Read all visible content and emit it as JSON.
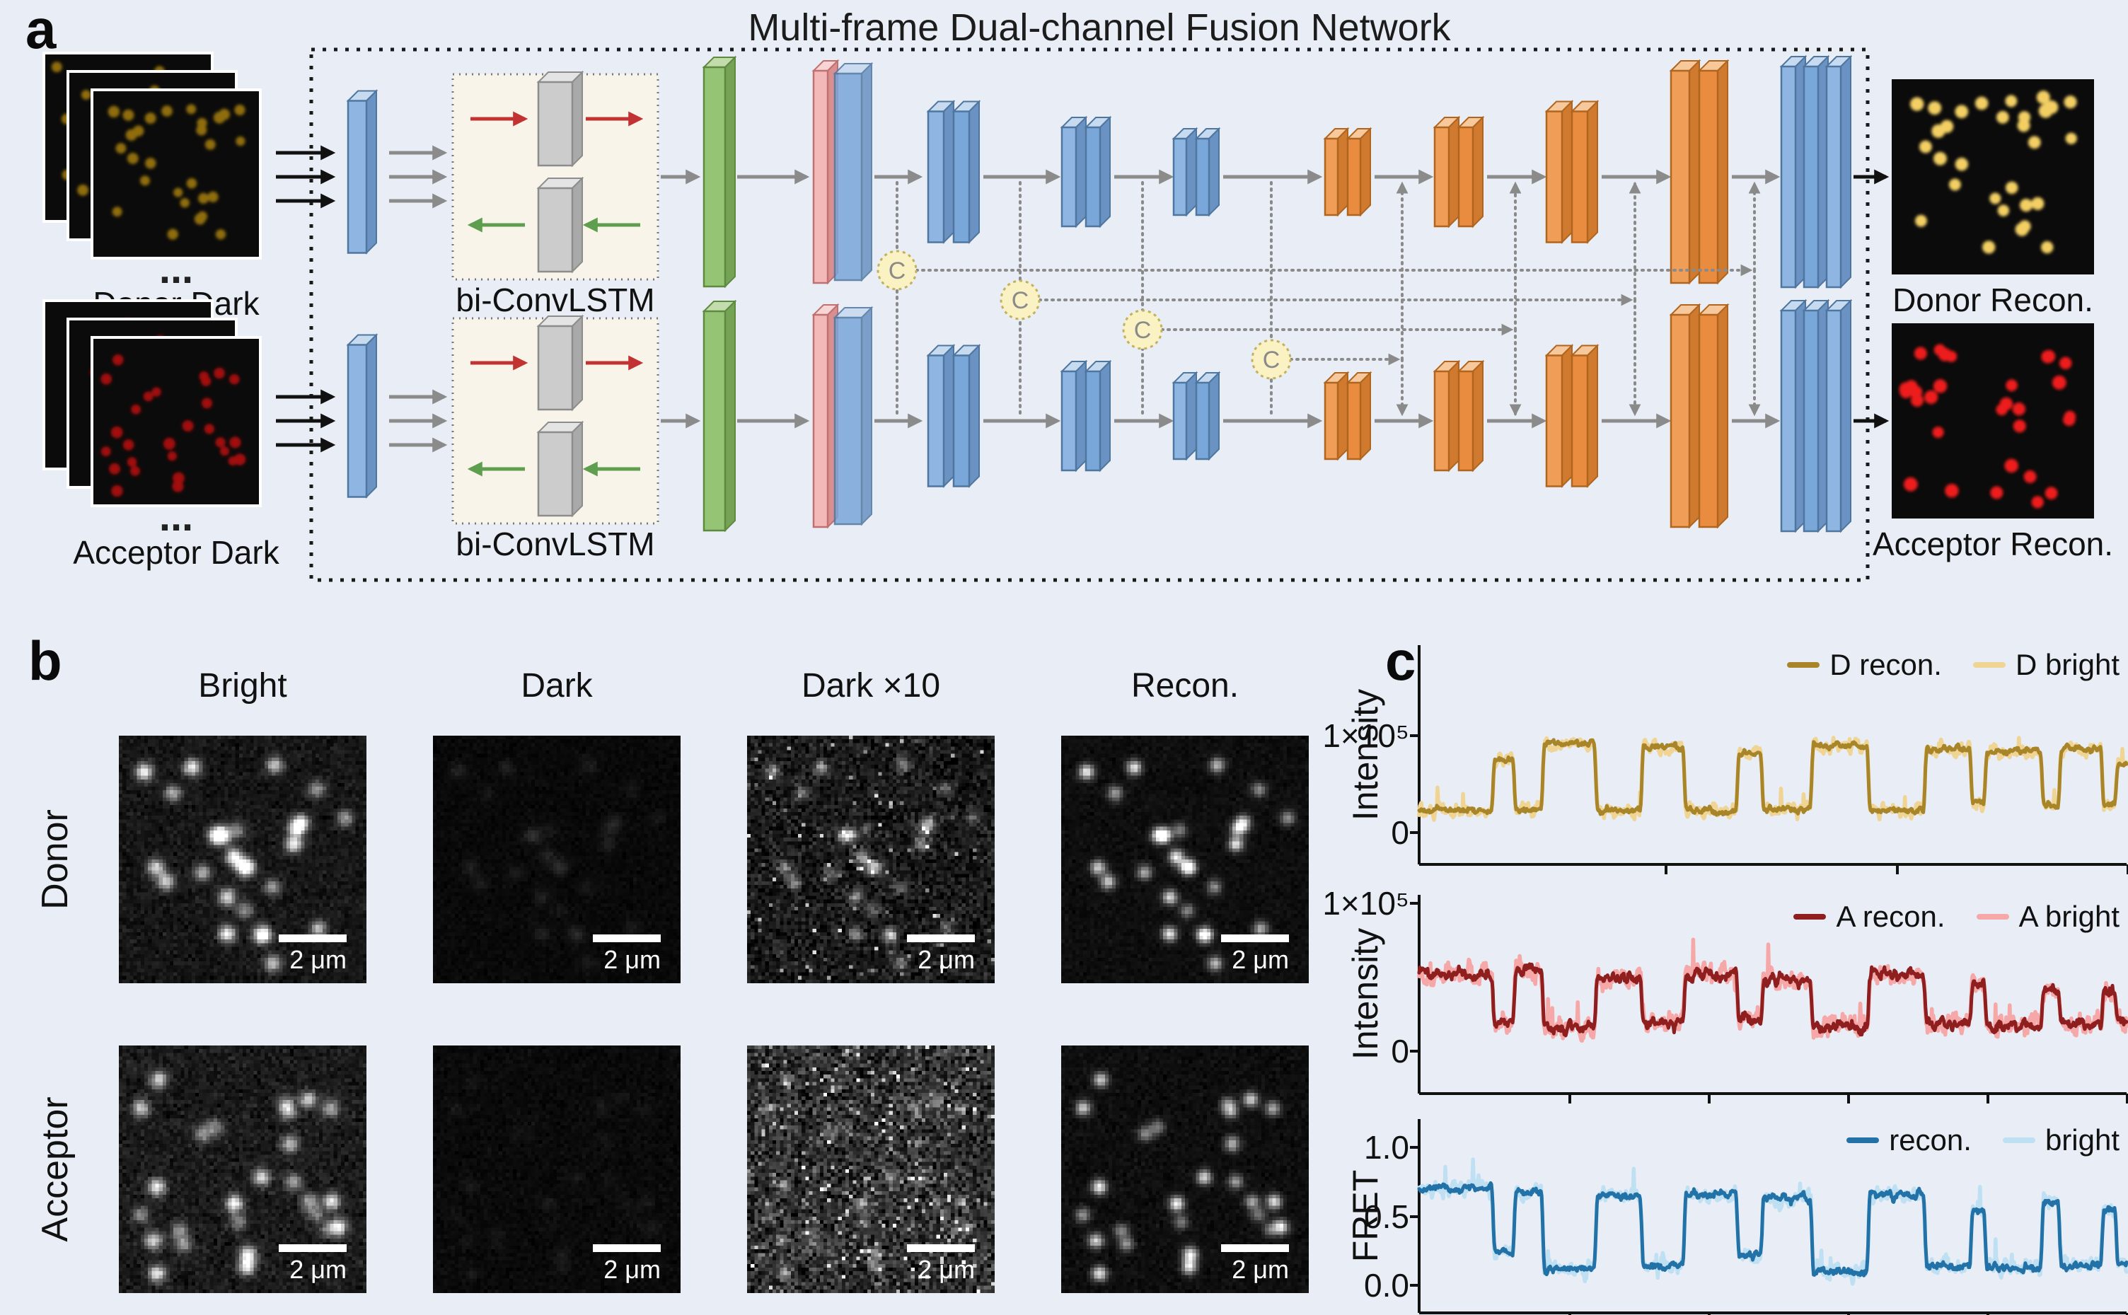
{
  "background": "#e9eef6",
  "panel_a": {
    "label": "a",
    "title": "Multi-frame Dual-channel Fusion Network",
    "inputs": [
      {
        "label": "Donor Dark",
        "dot_color": "#8f6d10"
      },
      {
        "label": "Acceptor Dark",
        "dot_color": "#a31010"
      }
    ],
    "outputs": [
      {
        "label": "Donor Recon.",
        "dot_color": "#f3cf63"
      },
      {
        "label": "Acceptor Recon.",
        "dot_color": "#ee1c1c"
      }
    ],
    "ellipsis": "...",
    "lstm_label": "bi-ConvLSTM",
    "concat_label": "C",
    "colors": {
      "conv_blue": "#8fb6e2",
      "upsample_orange": "#f09d58",
      "fusion_green": "#95c475",
      "attention_pink": "#f3b9b9",
      "lstm_gray": "#cccccc",
      "concat_fill": "#faf2c2",
      "arrow_gray": "#8b8b8b",
      "arrow_red": "#c23232",
      "arrow_green": "#5f9e4f",
      "arrow_black": "#111111"
    }
  },
  "panel_b": {
    "label": "b",
    "col_headers": [
      "Bright",
      "Dark",
      "Dark ×10",
      "Recon."
    ],
    "row_headers": [
      "Donor",
      "Acceptor"
    ],
    "scale_bar_label": "2 μm",
    "cells": [
      {
        "row": "Donor",
        "col": "Bright",
        "row_seed": 11,
        "ci": 0,
        "base": 22,
        "noise": 15,
        "amp": 200,
        "salt": 0,
        "sigma": 1.6
      },
      {
        "row": "Donor",
        "col": "Dark",
        "row_seed": 11,
        "ci": 1,
        "base": 9,
        "noise": 6,
        "amp": 22,
        "salt": 0,
        "sigma": 1.5
      },
      {
        "row": "Donor",
        "col": "Dark ×10",
        "row_seed": 11,
        "ci": 2,
        "base": 26,
        "noise": 30,
        "amp": 120,
        "salt": 0.02,
        "sigma": 1.3
      },
      {
        "row": "Donor",
        "col": "Recon.",
        "row_seed": 11,
        "ci": 3,
        "base": 14,
        "noise": 8,
        "amp": 195,
        "salt": 0,
        "sigma": 1.4
      },
      {
        "row": "Acceptor",
        "col": "Bright",
        "row_seed": 23,
        "ci": 0,
        "base": 26,
        "noise": 18,
        "amp": 180,
        "salt": 0,
        "sigma": 1.6
      },
      {
        "row": "Acceptor",
        "col": "Dark",
        "row_seed": 23,
        "ci": 1,
        "base": 10,
        "noise": 7,
        "amp": 12,
        "salt": 0,
        "sigma": 1.5
      },
      {
        "row": "Acceptor",
        "col": "Dark ×10",
        "row_seed": 23,
        "ci": 2,
        "base": 48,
        "noise": 50,
        "amp": 100,
        "salt": 0.05,
        "sigma": 1.2
      },
      {
        "row": "Acceptor",
        "col": "Recon.",
        "row_seed": 23,
        "ci": 3,
        "base": 14,
        "noise": 9,
        "amp": 185,
        "salt": 0,
        "sigma": 1.4
      }
    ]
  },
  "panel_c": {
    "label": "c"
  },
  "chart_data": [
    {
      "type": "line",
      "name": "donor-intensity",
      "ylabel": "Intensity",
      "yticks": [
        {
          "label": "1×10⁵",
          "value": 100000
        },
        {
          "label": "0",
          "value": 0
        }
      ],
      "legend": [
        {
          "label": "D recon.",
          "color": "#a9852a"
        },
        {
          "label": "D bright",
          "color": "#efd494"
        }
      ],
      "x_range": [
        0,
        1
      ],
      "ylim": [
        -33000,
        191000
      ],
      "grid": false,
      "legend_position": "top-right",
      "noise": {
        "recon": 3800,
        "bright": 8200
      },
      "segments": [
        [
          0,
          0.105,
          23000
        ],
        [
          0.105,
          0.135,
          76000
        ],
        [
          0.135,
          0.175,
          24000
        ],
        [
          0.175,
          0.25,
          92000
        ],
        [
          0.25,
          0.315,
          23000
        ],
        [
          0.315,
          0.375,
          88000
        ],
        [
          0.375,
          0.45,
          22000
        ],
        [
          0.45,
          0.485,
          82000
        ],
        [
          0.485,
          0.555,
          24000
        ],
        [
          0.555,
          0.635,
          90000
        ],
        [
          0.635,
          0.715,
          23000
        ],
        [
          0.715,
          0.78,
          86000
        ],
        [
          0.78,
          0.8,
          30000
        ],
        [
          0.8,
          0.88,
          84000
        ],
        [
          0.88,
          0.905,
          28000
        ],
        [
          0.905,
          0.965,
          86000
        ],
        [
          0.965,
          0.985,
          30000
        ],
        [
          0.985,
          1,
          72000
        ]
      ]
    },
    {
      "type": "line",
      "name": "acceptor-intensity",
      "ylabel": "Intensity",
      "yticks": [
        {
          "label": "1×10⁵",
          "value": 100000
        },
        {
          "label": "0",
          "value": 0
        }
      ],
      "legend": [
        {
          "label": "A recon.",
          "color": "#8f1f1f"
        },
        {
          "label": "A bright",
          "color": "#f6a8a8"
        }
      ],
      "x_range": [
        0,
        1
      ],
      "ylim": [
        -28000,
        103000
      ],
      "grid": false,
      "legend_position": "top-right",
      "noise": {
        "recon": 4500,
        "bright": 9000
      },
      "segments": [
        [
          0,
          0.105,
          52000
        ],
        [
          0.105,
          0.135,
          20000
        ],
        [
          0.135,
          0.175,
          55000
        ],
        [
          0.175,
          0.25,
          17000
        ],
        [
          0.25,
          0.315,
          50000
        ],
        [
          0.315,
          0.375,
          19000
        ],
        [
          0.375,
          0.45,
          52000
        ],
        [
          0.45,
          0.485,
          22000
        ],
        [
          0.485,
          0.555,
          48000
        ],
        [
          0.555,
          0.635,
          16000
        ],
        [
          0.635,
          0.715,
          52000
        ],
        [
          0.715,
          0.78,
          18000
        ],
        [
          0.78,
          0.8,
          45000
        ],
        [
          0.8,
          0.88,
          17000
        ],
        [
          0.88,
          0.905,
          42000
        ],
        [
          0.905,
          0.965,
          18000
        ],
        [
          0.965,
          0.985,
          40000
        ],
        [
          0.985,
          1,
          20000
        ]
      ]
    },
    {
      "type": "line",
      "name": "fret",
      "ylabel": "FRET",
      "yticks": [
        {
          "label": "1.0",
          "value": 1.0
        },
        {
          "label": "0.5",
          "value": 0.5
        },
        {
          "label": "0.0",
          "value": 0.0
        }
      ],
      "legend": [
        {
          "label": "recon.",
          "color": "#2272a8"
        },
        {
          "label": "bright",
          "color": "#bfe0f2"
        }
      ],
      "x_range": [
        0,
        1
      ],
      "ylim": [
        -0.2,
        1.19
      ],
      "grid": false,
      "legend_position": "top-right",
      "noise": {
        "recon": 0.035,
        "bright": 0.07
      },
      "segments": [
        [
          0,
          0.105,
          0.7
        ],
        [
          0.105,
          0.135,
          0.25
        ],
        [
          0.135,
          0.175,
          0.68
        ],
        [
          0.175,
          0.25,
          0.12
        ],
        [
          0.25,
          0.315,
          0.65
        ],
        [
          0.315,
          0.375,
          0.14
        ],
        [
          0.375,
          0.45,
          0.66
        ],
        [
          0.45,
          0.485,
          0.22
        ],
        [
          0.485,
          0.555,
          0.64
        ],
        [
          0.555,
          0.635,
          0.1
        ],
        [
          0.635,
          0.715,
          0.66
        ],
        [
          0.715,
          0.78,
          0.14
        ],
        [
          0.78,
          0.8,
          0.55
        ],
        [
          0.8,
          0.88,
          0.13
        ],
        [
          0.88,
          0.905,
          0.6
        ],
        [
          0.905,
          0.965,
          0.15
        ],
        [
          0.965,
          0.985,
          0.55
        ],
        [
          0.985,
          1,
          0.15
        ]
      ]
    }
  ]
}
